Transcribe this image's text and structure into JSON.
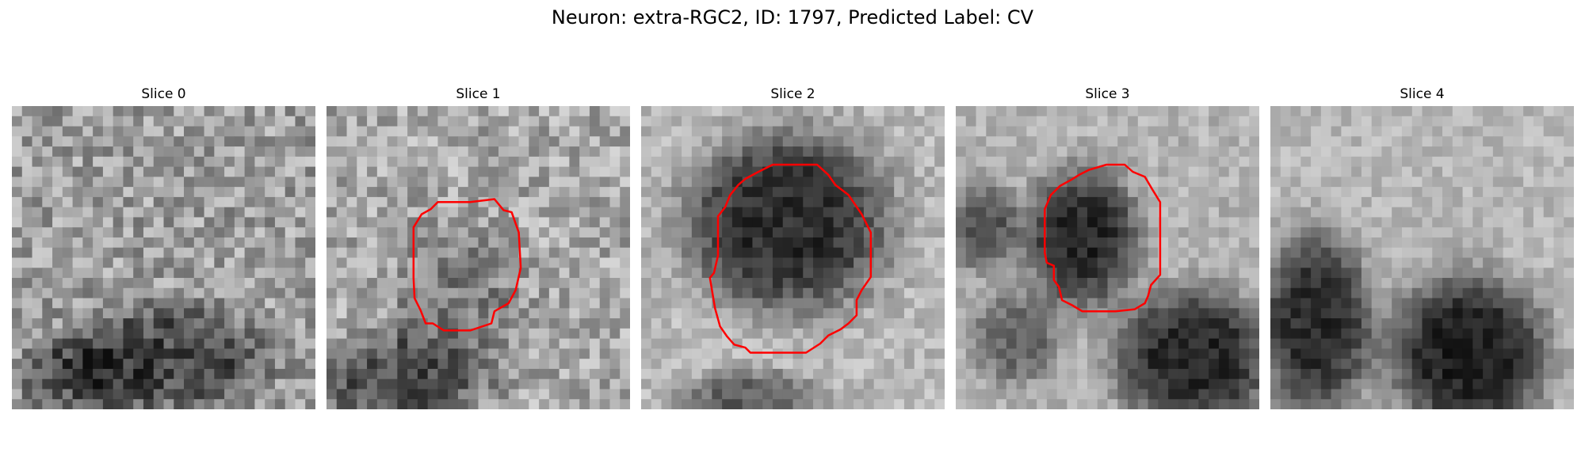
{
  "figure": {
    "title": "Neuron: extra-RGC2, ID: 1797, Predicted Label: CV",
    "contour_color": "#ff0000"
  },
  "slices": [
    {
      "title": "Slice 0",
      "has_contour": false
    },
    {
      "title": "Slice 1",
      "has_contour": true
    },
    {
      "title": "Slice 2",
      "has_contour": true
    },
    {
      "title": "Slice 3",
      "has_contour": true
    },
    {
      "title": "Slice 4",
      "has_contour": false
    }
  ]
}
